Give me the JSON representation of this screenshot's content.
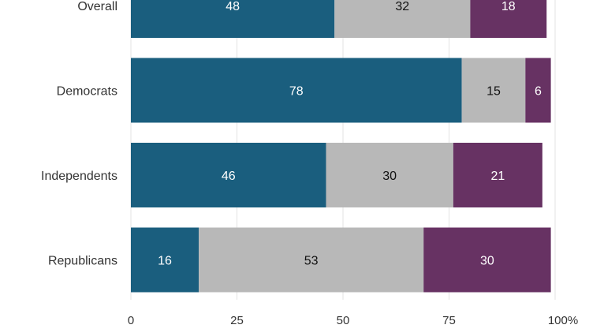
{
  "chart_data": {
    "type": "bar",
    "orientation": "horizontal",
    "stacked": true,
    "categories": [
      "Overall",
      "Democrats",
      "Independents",
      "Republicans"
    ],
    "series": [
      {
        "values": [
          48,
          78,
          46,
          16
        ],
        "color": "#1a5e7e",
        "label_color": "#ffffff"
      },
      {
        "values": [
          32,
          15,
          30,
          53
        ],
        "color": "#b8b8b8",
        "label_color": "#111111"
      },
      {
        "values": [
          18,
          6,
          21,
          30
        ],
        "color": "#673263",
        "label_color": "#ffffff"
      }
    ],
    "xlim": [
      0,
      100
    ],
    "x_ticks": [
      "0",
      "25",
      "50",
      "75",
      "100%"
    ],
    "x_tick_values": [
      0,
      25,
      50,
      75,
      100
    ],
    "grid": "vertical",
    "legend": "none"
  }
}
